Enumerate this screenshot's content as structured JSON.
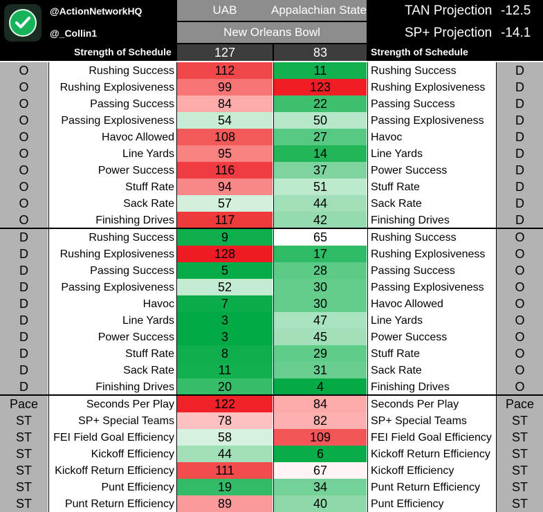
{
  "header": {
    "handle1": "@ActionNetworkHQ",
    "handle2": "@_Collin1",
    "team_a": "UAB",
    "team_b": "Appalachian State",
    "bowl": "New Orleans Bowl",
    "tan_label": "TAN Projection",
    "tan_value": "-12.5",
    "sp_label": "SP+ Projection",
    "sp_value": "-14.1",
    "sos_label": "Strength of Schedule",
    "sos_a": "127",
    "sos_b": "83"
  },
  "colors": {
    "header_bg": "#000000",
    "team_cell_bg": "#8c8c8c",
    "side_cell_bg": "#b3b3b3"
  },
  "rows": [
    {
      "ls": "O",
      "ll": "Rushing Success",
      "a": "112",
      "ac": "#f04848",
      "b": "11",
      "bc": "#12b04e",
      "rl": "Rushing Success",
      "rs": "D"
    },
    {
      "ls": "O",
      "ll": "Rushing Explosiveness",
      "a": "99",
      "ac": "#f67474",
      "b": "123",
      "bc": "#ee1e24",
      "rl": "Rushing Explosiveness",
      "rs": "D"
    },
    {
      "ls": "O",
      "ll": "Passing Success",
      "a": "84",
      "ac": "#fcaaaa",
      "b": "22",
      "bc": "#3ebf6e",
      "rl": "Passing Success",
      "rs": "D"
    },
    {
      "ls": "O",
      "ll": "Passing Explosiveness",
      "a": "54",
      "ac": "#c6ecd4",
      "b": "50",
      "bc": "#b6e7c8",
      "rl": "Passing Explosiveness",
      "rs": "D"
    },
    {
      "ls": "O",
      "ll": "Havoc Allowed",
      "a": "108",
      "ac": "#f25a5a",
      "b": "27",
      "bc": "#58c983",
      "rl": "Havoc",
      "rs": "D"
    },
    {
      "ls": "O",
      "ll": "Line Yards",
      "a": "95",
      "ac": "#f88282",
      "b": "14",
      "bc": "#22b659",
      "rl": "Line Yards",
      "rs": "D"
    },
    {
      "ls": "O",
      "ll": "Power Success",
      "a": "116",
      "ac": "#f03c40",
      "b": "37",
      "bc": "#7ed49f",
      "rl": "Power Success",
      "rs": "D"
    },
    {
      "ls": "O",
      "ll": "Stuff Rate",
      "a": "94",
      "ac": "#f88888",
      "b": "51",
      "bc": "#bde9cd",
      "rl": "Stuff Rate",
      "rs": "D"
    },
    {
      "ls": "O",
      "ll": "Sack Rate",
      "a": "57",
      "ac": "#d2f0dc",
      "b": "44",
      "bc": "#a0dfb8",
      "rl": "Sack Rate",
      "rs": "D"
    },
    {
      "ls": "O",
      "ll": "Finishing Drives",
      "a": "117",
      "ac": "#ef3a3c",
      "b": "42",
      "bc": "#96dbb0",
      "rl": "Finishing Drives",
      "rs": "D",
      "sep": true
    },
    {
      "ls": "D",
      "ll": "Rushing Success",
      "a": "9",
      "ac": "#0fae4c",
      "b": "65",
      "bc": "#ffffff",
      "rl": "Rushing Success",
      "rs": "O"
    },
    {
      "ls": "D",
      "ll": "Rushing Explosiveness",
      "a": "128",
      "ac": "#ed1c24",
      "b": "17",
      "bc": "#2fba65",
      "rl": "Rushing Explosiveness",
      "rs": "O"
    },
    {
      "ls": "D",
      "ll": "Passing Success",
      "a": "5",
      "ac": "#07ab48",
      "b": "28",
      "bc": "#5ccb86",
      "rl": "Passing Success",
      "rs": "O"
    },
    {
      "ls": "D",
      "ll": "Passing Explosiveness",
      "a": "52",
      "ac": "#c2ebd1",
      "b": "30",
      "bc": "#64cd8c",
      "rl": "Passing Explosiveness",
      "rs": "O"
    },
    {
      "ls": "D",
      "ll": "Havoc",
      "a": "7",
      "ac": "#0bad4a",
      "b": "30",
      "bc": "#64cd8c",
      "rl": "Havoc Allowed",
      "rs": "O"
    },
    {
      "ls": "D",
      "ll": "Line Yards",
      "a": "3",
      "ac": "#03a945",
      "b": "47",
      "bc": "#aae3c0",
      "rl": "Line Yards",
      "rs": "O"
    },
    {
      "ls": "D",
      "ll": "Power Success",
      "a": "3",
      "ac": "#03a945",
      "b": "45",
      "bc": "#a3e0ba",
      "rl": "Power Success",
      "rs": "O"
    },
    {
      "ls": "D",
      "ll": "Stuff Rate",
      "a": "8",
      "ac": "#0dae4b",
      "b": "29",
      "bc": "#60cc89",
      "rl": "Stuff Rate",
      "rs": "O"
    },
    {
      "ls": "D",
      "ll": "Sack Rate",
      "a": "11",
      "ac": "#12b04e",
      "b": "31",
      "bc": "#68ce8f",
      "rl": "Sack Rate",
      "rs": "O"
    },
    {
      "ls": "D",
      "ll": "Finishing Drives",
      "a": "20",
      "ac": "#37bd69",
      "b": "4",
      "bc": "#05aa46",
      "rl": "Finishing Drives",
      "rs": "O",
      "sep": true
    },
    {
      "ls": "Pace",
      "ll": "Seconds Per Play",
      "a": "122",
      "ac": "#ee2228",
      "b": "84",
      "bc": "#fcaaaa",
      "rl": "Seconds Per Play",
      "rs": "Pace"
    },
    {
      "ls": "ST",
      "ll": "SP+ Special Teams",
      "a": "78",
      "ac": "#fdc0c0",
      "b": "82",
      "bc": "#fcb0b0",
      "rl": "SP+ Special Teams",
      "rs": "ST"
    },
    {
      "ls": "ST",
      "ll": "FEI Field Goal Efficiency",
      "a": "58",
      "ac": "#d6f1e0",
      "b": "109",
      "bc": "#f25656",
      "rl": "FEI Field Goal Efficiency",
      "rs": "ST"
    },
    {
      "ls": "ST",
      "ll": "Kickoff Efficiency",
      "a": "44",
      "ac": "#a0dfb8",
      "b": "6",
      "bc": "#09ac49",
      "rl": "Kickoff Return Efficiency",
      "rs": "ST"
    },
    {
      "ls": "ST",
      "ll": "Kickoff Return Efficiency",
      "a": "111",
      "ac": "#f14c4c",
      "b": "67",
      "bc": "#fff4f4",
      "rl": "Kickoff Efficiency",
      "rs": "ST"
    },
    {
      "ls": "ST",
      "ll": "Punt Efficiency",
      "a": "19",
      "ac": "#33bc67",
      "b": "34",
      "bc": "#74d197",
      "rl": "Punt Return Efficiency",
      "rs": "ST"
    },
    {
      "ls": "ST",
      "ll": "Punt Return Efficiency",
      "a": "89",
      "ac": "#fa9a9a",
      "b": "40",
      "bc": "#8ed8aa",
      "rl": "Punt Efficiency",
      "rs": "ST"
    }
  ]
}
